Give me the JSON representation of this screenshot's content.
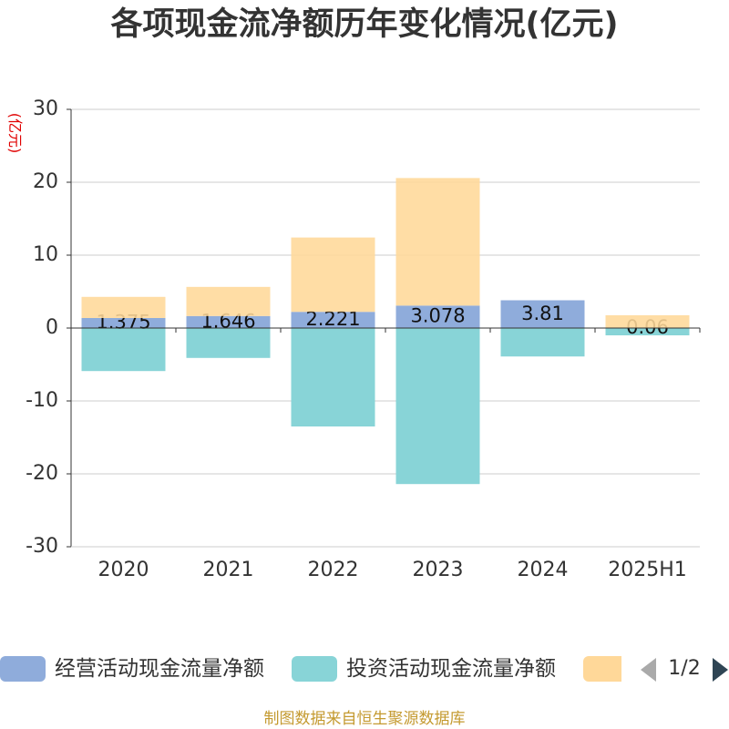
{
  "chart_data": {
    "type": "bar",
    "stacked": true,
    "title": "各项现金流净额历年变化情况(亿元)",
    "ylabel": "(亿元)",
    "xlabel": "",
    "ylim": [
      -30,
      30
    ],
    "yticks": [
      -30,
      -20,
      -10,
      0,
      10,
      20,
      30
    ],
    "grid": true,
    "legend_position": "bottom",
    "categories": [
      "2020",
      "2021",
      "2022",
      "2023",
      "2024",
      "2025H1"
    ],
    "series": [
      {
        "name": "经营活动现金流量净额",
        "color": "#8facdb",
        "show_labels": true,
        "values": [
          1.375,
          1.646,
          2.221,
          3.078,
          3.81,
          0.06
        ]
      },
      {
        "name": "投资活动现金流量净额",
        "color": "#88d4d7",
        "show_labels": false,
        "values": [
          -5.9,
          -4.1,
          -13.5,
          -21.4,
          -3.9,
          -1.0
        ]
      },
      {
        "name": "",
        "color": "#ffd899",
        "show_labels": false,
        "values": [
          2.9,
          4.0,
          10.2,
          17.5,
          0,
          1.7
        ]
      }
    ]
  },
  "legend": {
    "page_label": "1/2",
    "prev_icon": "triangle-left-icon",
    "next_icon": "triangle-right-icon",
    "prev_color": "#aaaaaa",
    "next_color": "#2f4554"
  },
  "footer": "制图数据来自恒生聚源数据库"
}
